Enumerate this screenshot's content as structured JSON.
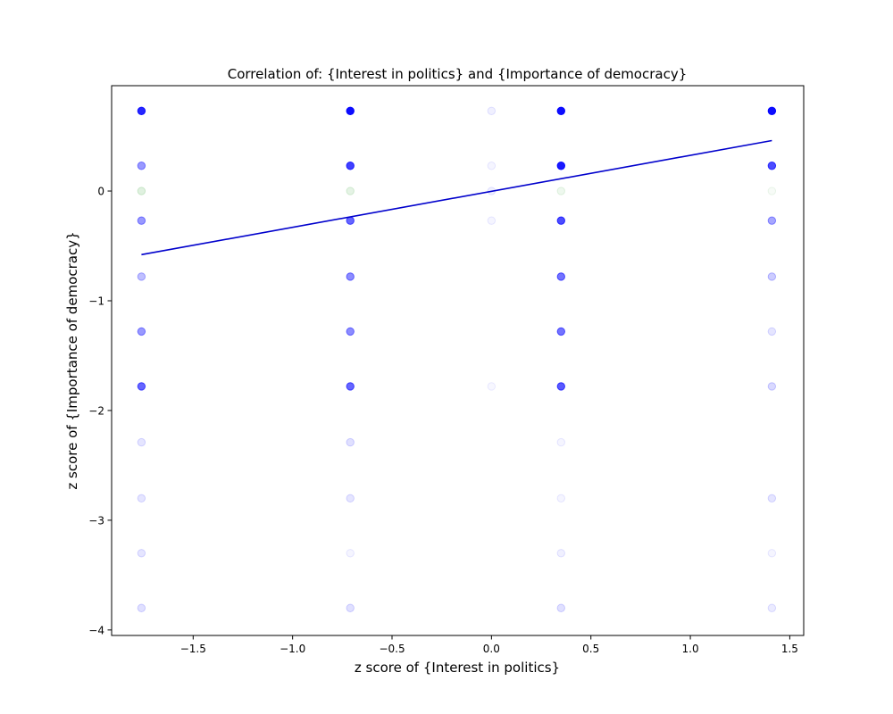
{
  "chart_data": {
    "type": "scatter",
    "title": "Correlation of: {Interest in politics} and {Importance of democracy}",
    "xlabel": "z score of {Interest in politics}",
    "ylabel": "z score of {Importance of democracy}",
    "xlim": [
      -1.91,
      1.57
    ],
    "ylim": [
      -4.05,
      0.96
    ],
    "xticks": [
      {
        "value": -1.5,
        "label": "−1.5"
      },
      {
        "value": -1.0,
        "label": "−1.0"
      },
      {
        "value": -0.5,
        "label": "−0.5"
      },
      {
        "value": 0.0,
        "label": "0.0"
      },
      {
        "value": 0.5,
        "label": "0.5"
      },
      {
        "value": 1.0,
        "label": "1.0"
      },
      {
        "value": 1.5,
        "label": "1.5"
      }
    ],
    "yticks": [
      {
        "value": 0,
        "label": "0"
      },
      {
        "value": -1,
        "label": "−1"
      },
      {
        "value": -2,
        "label": "−2"
      },
      {
        "value": -3,
        "label": "−3"
      },
      {
        "value": -4,
        "label": "−4"
      }
    ],
    "grid": false,
    "colors": {
      "points": "#0000ff",
      "missing_points": "#2ca02c",
      "fit_line": "#0000cc"
    },
    "series": [
      {
        "marker": "circle",
        "points": [
          {
            "x": -1.76,
            "y": 0.73,
            "opacity": 0.85
          },
          {
            "x": -1.76,
            "y": 0.23,
            "opacity": 0.4
          },
          {
            "x": -1.76,
            "y": -0.27,
            "opacity": 0.4
          },
          {
            "x": -1.76,
            "y": -0.78,
            "opacity": 0.25
          },
          {
            "x": -1.76,
            "y": -1.28,
            "opacity": 0.4
          },
          {
            "x": -1.76,
            "y": -1.78,
            "opacity": 0.6
          },
          {
            "x": -1.76,
            "y": -2.29,
            "opacity": 0.1
          },
          {
            "x": -1.76,
            "y": -2.8,
            "opacity": 0.1
          },
          {
            "x": -1.76,
            "y": -3.3,
            "opacity": 0.1
          },
          {
            "x": -1.76,
            "y": -3.8,
            "opacity": 0.12
          },
          {
            "x": -0.71,
            "y": 0.73,
            "opacity": 0.95
          },
          {
            "x": -0.71,
            "y": 0.23,
            "opacity": 0.75
          },
          {
            "x": -0.71,
            "y": -0.27,
            "opacity": 0.6
          },
          {
            "x": -0.71,
            "y": -0.78,
            "opacity": 0.45
          },
          {
            "x": -0.71,
            "y": -1.28,
            "opacity": 0.45
          },
          {
            "x": -0.71,
            "y": -1.78,
            "opacity": 0.6
          },
          {
            "x": -0.71,
            "y": -2.29,
            "opacity": 0.12
          },
          {
            "x": -0.71,
            "y": -2.8,
            "opacity": 0.1
          },
          {
            "x": -0.71,
            "y": -3.3,
            "opacity": 0.04
          },
          {
            "x": -0.71,
            "y": -3.8,
            "opacity": 0.12
          },
          {
            "x": 0.0,
            "y": 0.73,
            "opacity": 0.06
          },
          {
            "x": 0.0,
            "y": 0.23,
            "opacity": 0.04
          },
          {
            "x": 0.0,
            "y": 0.0,
            "opacity": 0.06
          },
          {
            "x": 0.0,
            "y": -0.27,
            "opacity": 0.04
          },
          {
            "x": 0.0,
            "y": -1.78,
            "opacity": 0.03
          },
          {
            "x": 0.35,
            "y": 0.73,
            "opacity": 0.95
          },
          {
            "x": 0.35,
            "y": 0.23,
            "opacity": 0.9
          },
          {
            "x": 0.35,
            "y": -0.27,
            "opacity": 0.7
          },
          {
            "x": 0.35,
            "y": -0.78,
            "opacity": 0.55
          },
          {
            "x": 0.35,
            "y": -1.28,
            "opacity": 0.55
          },
          {
            "x": 0.35,
            "y": -1.78,
            "opacity": 0.65
          },
          {
            "x": 0.35,
            "y": -2.29,
            "opacity": 0.04
          },
          {
            "x": 0.35,
            "y": -2.8,
            "opacity": 0.04
          },
          {
            "x": 0.35,
            "y": -3.3,
            "opacity": 0.06
          },
          {
            "x": 0.35,
            "y": -3.8,
            "opacity": 0.12
          },
          {
            "x": 1.41,
            "y": 0.73,
            "opacity": 0.95
          },
          {
            "x": 1.41,
            "y": 0.23,
            "opacity": 0.7
          },
          {
            "x": 1.41,
            "y": -0.27,
            "opacity": 0.35
          },
          {
            "x": 1.41,
            "y": -0.78,
            "opacity": 0.2
          },
          {
            "x": 1.41,
            "y": -1.28,
            "opacity": 0.1
          },
          {
            "x": 1.41,
            "y": -1.78,
            "opacity": 0.15
          },
          {
            "x": 1.41,
            "y": -2.8,
            "opacity": 0.1
          },
          {
            "x": 1.41,
            "y": -3.3,
            "opacity": 0.04
          },
          {
            "x": 1.41,
            "y": -3.8,
            "opacity": 0.08
          }
        ]
      },
      {
        "marker": "circle",
        "points": [
          {
            "x": -1.76,
            "y": 0.0,
            "opacity": 0.15
          },
          {
            "x": -0.71,
            "y": 0.0,
            "opacity": 0.12
          },
          {
            "x": 0.35,
            "y": 0.0,
            "opacity": 0.08
          },
          {
            "x": 1.41,
            "y": 0.0,
            "opacity": 0.04
          }
        ]
      }
    ],
    "fit_line": {
      "x": [
        -1.76,
        1.41
      ],
      "y": [
        -0.58,
        0.46
      ]
    }
  }
}
